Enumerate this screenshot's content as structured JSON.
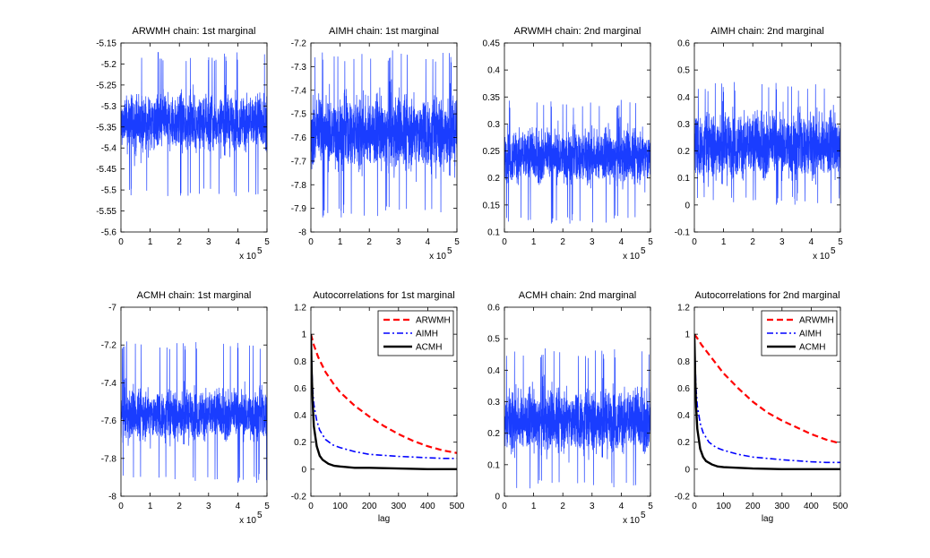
{
  "chart_data": [
    {
      "type": "line",
      "kind": "trace",
      "title": "ARWMH chain: 1st marginal",
      "xlabel": "",
      "ylabel": "",
      "xlim": [
        0,
        5
      ],
      "ylim": [
        -5.6,
        -5.15
      ],
      "xticks": [
        "0",
        "1",
        "2",
        "3",
        "4",
        "5"
      ],
      "yticks": [
        "-5.6",
        "-5.55",
        "-5.5",
        "-5.45",
        "-5.4",
        "-5.35",
        "-5.3",
        "-5.25",
        "-5.2",
        "-5.15"
      ],
      "x_multiplier": "x 10",
      "x_multiplier_exp": "5",
      "trace": {
        "color": "#1a3dff",
        "center": -5.34,
        "spread": 0.06,
        "peak_high": -5.17,
        "peak_low": -5.52
      }
    },
    {
      "type": "line",
      "kind": "trace",
      "title": "AIMH chain: 1st marginal",
      "xlabel": "",
      "ylabel": "",
      "xlim": [
        0,
        5
      ],
      "ylim": [
        -8,
        -7.2
      ],
      "xticks": [
        "0",
        "1",
        "2",
        "3",
        "4",
        "5"
      ],
      "yticks": [
        "-8",
        "-7.9",
        "-7.8",
        "-7.7",
        "-7.6",
        "-7.5",
        "-7.4",
        "-7.3",
        "-7.2"
      ],
      "x_multiplier": "x 10",
      "x_multiplier_exp": "5",
      "trace": {
        "color": "#1a3dff",
        "center": -7.58,
        "spread": 0.14,
        "peak_high": -7.23,
        "peak_low": -7.94
      }
    },
    {
      "type": "line",
      "kind": "trace",
      "title": "ARWMH chain: 2nd marginal",
      "xlabel": "",
      "ylabel": "",
      "xlim": [
        0,
        5
      ],
      "ylim": [
        0.1,
        0.45
      ],
      "xticks": [
        "0",
        "1",
        "2",
        "3",
        "4",
        "5"
      ],
      "yticks": [
        "0.1",
        "0.15",
        "0.2",
        "0.25",
        "0.3",
        "0.35",
        "0.4",
        "0.45"
      ],
      "x_multiplier": "x 10",
      "x_multiplier_exp": "5",
      "trace": {
        "color": "#1a3dff",
        "center": 0.24,
        "spread": 0.045,
        "peak_high": 0.345,
        "peak_low": 0.115
      }
    },
    {
      "type": "line",
      "kind": "trace",
      "title": "AIMH chain: 2nd marginal",
      "xlabel": "",
      "ylabel": "",
      "xlim": [
        0,
        5
      ],
      "ylim": [
        -0.1,
        0.6
      ],
      "xticks": [
        "0",
        "1",
        "2",
        "3",
        "4",
        "5"
      ],
      "yticks": [
        "-0.1",
        "0",
        "0.1",
        "0.2",
        "0.3",
        "0.4",
        "0.5",
        "0.6"
      ],
      "x_multiplier": "x 10",
      "x_multiplier_exp": "5",
      "trace": {
        "color": "#1a3dff",
        "center": 0.22,
        "spread": 0.11,
        "peak_high": 0.46,
        "peak_low": 0.0
      }
    },
    {
      "type": "line",
      "kind": "trace",
      "title": "ACMH chain: 1st marginal",
      "xlabel": "",
      "ylabel": "",
      "xlim": [
        0,
        5
      ],
      "ylim": [
        -8,
        -7
      ],
      "xticks": [
        "0",
        "1",
        "2",
        "3",
        "4",
        "5"
      ],
      "yticks": [
        "-8",
        "-7.8",
        "-7.6",
        "-7.4",
        "-7.2",
        "-7"
      ],
      "x_multiplier": "x 10",
      "x_multiplier_exp": "5",
      "trace": {
        "color": "#1a3dff",
        "center": -7.57,
        "spread": 0.12,
        "peak_high": -7.18,
        "peak_low": -7.93
      }
    },
    {
      "type": "line",
      "kind": "acf",
      "title": "Autocorrelations for 1st marginal",
      "xlabel": "lag",
      "ylabel": "",
      "xlim": [
        0,
        500
      ],
      "ylim": [
        -0.2,
        1.2
      ],
      "xticks": [
        "0",
        "100",
        "200",
        "300",
        "400",
        "500"
      ],
      "yticks": [
        "-0.2",
        "0",
        "0.2",
        "0.4",
        "0.6",
        "0.8",
        "1",
        "1.2"
      ],
      "legend": "top-right",
      "series": [
        {
          "name": "ARWMH",
          "color": "#ff0000",
          "dash": "dashed",
          "x": [
            0,
            10,
            25,
            50,
            75,
            100,
            150,
            200,
            250,
            300,
            350,
            400,
            450,
            500
          ],
          "values": [
            1.0,
            0.92,
            0.83,
            0.72,
            0.64,
            0.57,
            0.47,
            0.39,
            0.32,
            0.26,
            0.21,
            0.17,
            0.14,
            0.12
          ]
        },
        {
          "name": "AIMH",
          "color": "#0000ff",
          "dash": "dashdot",
          "x": [
            0,
            5,
            10,
            20,
            30,
            50,
            75,
            100,
            150,
            200,
            300,
            400,
            450,
            500
          ],
          "values": [
            1.0,
            0.62,
            0.48,
            0.36,
            0.29,
            0.22,
            0.18,
            0.16,
            0.13,
            0.11,
            0.095,
            0.085,
            0.08,
            0.08
          ]
        },
        {
          "name": "ACMH",
          "color": "#000000",
          "dash": "solid",
          "x": [
            0,
            3,
            6,
            10,
            20,
            30,
            40,
            60,
            80,
            100,
            150,
            200,
            300,
            400,
            500
          ],
          "values": [
            1.0,
            0.7,
            0.5,
            0.32,
            0.17,
            0.1,
            0.07,
            0.04,
            0.025,
            0.02,
            0.01,
            0.01,
            0.005,
            0.0,
            0.0
          ]
        }
      ]
    },
    {
      "type": "line",
      "kind": "trace",
      "title": "ACMH chain: 2nd marginal",
      "xlabel": "",
      "ylabel": "",
      "xlim": [
        0,
        5
      ],
      "ylim": [
        0,
        0.6
      ],
      "xticks": [
        "0",
        "1",
        "2",
        "3",
        "4",
        "5"
      ],
      "yticks": [
        "0",
        "0.1",
        "0.2",
        "0.3",
        "0.4",
        "0.5",
        "0.6"
      ],
      "x_multiplier": "x 10",
      "x_multiplier_exp": "5",
      "trace": {
        "color": "#1a3dff",
        "center": 0.24,
        "spread": 0.09,
        "peak_high": 0.47,
        "peak_low": 0.02
      }
    },
    {
      "type": "line",
      "kind": "acf",
      "title": "Autocorrelations for 2nd marginal",
      "xlabel": "lag",
      "ylabel": "",
      "xlim": [
        0,
        500
      ],
      "ylim": [
        -0.2,
        1.2
      ],
      "xticks": [
        "0",
        "100",
        "200",
        "300",
        "400",
        "500"
      ],
      "yticks": [
        "-0.2",
        "0",
        "0.2",
        "0.4",
        "0.6",
        "0.8",
        "1",
        "1.2"
      ],
      "legend": "top-right",
      "series": [
        {
          "name": "ARWMH",
          "color": "#ff0000",
          "dash": "dashed",
          "x": [
            0,
            10,
            25,
            50,
            75,
            100,
            150,
            200,
            250,
            300,
            350,
            400,
            450,
            500
          ],
          "values": [
            1.0,
            0.97,
            0.92,
            0.85,
            0.78,
            0.71,
            0.6,
            0.5,
            0.42,
            0.36,
            0.31,
            0.26,
            0.22,
            0.19
          ]
        },
        {
          "name": "AIMH",
          "color": "#0000ff",
          "dash": "dashdot",
          "x": [
            0,
            5,
            10,
            20,
            30,
            50,
            75,
            100,
            150,
            200,
            300,
            400,
            450,
            500
          ],
          "values": [
            1.0,
            0.62,
            0.47,
            0.34,
            0.27,
            0.2,
            0.16,
            0.14,
            0.11,
            0.09,
            0.07,
            0.055,
            0.05,
            0.05
          ]
        },
        {
          "name": "ACMH",
          "color": "#000000",
          "dash": "solid",
          "x": [
            0,
            3,
            6,
            10,
            20,
            30,
            40,
            60,
            80,
            100,
            150,
            200,
            300,
            400,
            500
          ],
          "values": [
            1.0,
            0.68,
            0.46,
            0.3,
            0.15,
            0.09,
            0.06,
            0.035,
            0.02,
            0.015,
            0.01,
            0.005,
            0.0,
            0.0,
            0.0
          ]
        }
      ]
    }
  ]
}
